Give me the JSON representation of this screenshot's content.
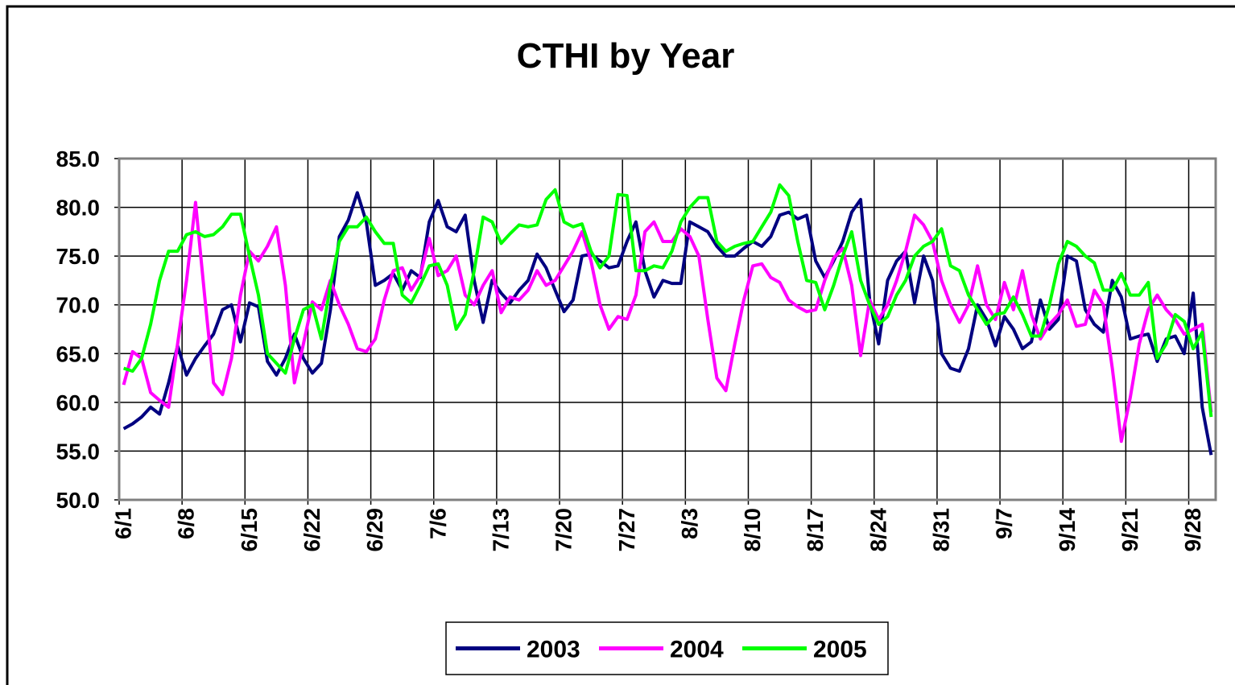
{
  "chart_data": {
    "type": "line",
    "title": "CTHI by Year",
    "categories": [
      "6/1",
      null,
      null,
      null,
      null,
      null,
      null,
      "6/8",
      null,
      null,
      null,
      null,
      null,
      null,
      "6/15",
      null,
      null,
      null,
      null,
      null,
      null,
      "6/22",
      null,
      null,
      null,
      null,
      null,
      null,
      "6/29",
      null,
      null,
      null,
      null,
      null,
      null,
      "7/6",
      null,
      null,
      null,
      null,
      null,
      null,
      "7/13",
      null,
      null,
      null,
      null,
      null,
      null,
      "7/20",
      null,
      null,
      null,
      null,
      null,
      null,
      "7/27",
      null,
      null,
      null,
      null,
      null,
      null,
      "8/3",
      null,
      null,
      null,
      null,
      null,
      null,
      "8/10",
      null,
      null,
      null,
      null,
      null,
      null,
      "8/17",
      null,
      null,
      null,
      null,
      null,
      null,
      "8/24",
      null,
      null,
      null,
      null,
      null,
      null,
      "8/31",
      null,
      null,
      null,
      null,
      null,
      null,
      "9/7",
      null,
      null,
      null,
      null,
      null,
      null,
      "9/14",
      null,
      null,
      null,
      null,
      null,
      null,
      "9/21",
      null,
      null,
      null,
      null,
      null,
      null,
      "9/28",
      null,
      null
    ],
    "series": [
      {
        "name": "2003",
        "color": "#000080",
        "values": [
          57.3,
          57.8,
          58.5,
          59.5,
          58.8,
          62,
          65.8,
          62.8,
          64.5,
          65.8,
          67,
          69.5,
          70,
          66.2,
          70.2,
          69.8,
          64.2,
          62.8,
          64.5,
          67,
          64.5,
          63,
          64,
          69.5,
          77,
          78.7,
          81.5,
          78.5,
          72,
          72.5,
          73.2,
          71.5,
          73.5,
          72.8,
          78.5,
          80.7,
          78,
          77.5,
          79.2,
          72.5,
          68.2,
          72.5,
          71.2,
          70.2,
          71.5,
          72.5,
          75.2,
          73.8,
          71.5,
          69.3,
          70.5,
          75,
          75.2,
          74.5,
          73.8,
          74,
          76.5,
          78.5,
          73.5,
          70.8,
          72.5,
          72.2,
          72.2,
          78.5,
          78,
          77.5,
          76,
          75,
          75,
          75.8,
          76.5,
          76,
          77,
          79.2,
          79.5,
          78.8,
          79.2,
          74.5,
          72.8,
          74.5,
          76.5,
          79.5,
          80.8,
          70.5,
          66,
          72.5,
          74.5,
          75.5,
          70.2,
          75,
          72.5,
          65,
          63.5,
          63.2,
          65.5,
          70,
          68.5,
          65.8,
          68.8,
          67.5,
          65.5,
          66.2,
          70.5,
          67.5,
          68.5,
          75,
          74.5,
          69.5,
          68,
          67.2,
          72.5,
          70.8,
          66.5,
          66.8,
          67,
          64.2,
          66.5,
          66.8,
          65,
          71.2,
          59.5,
          54.6
        ]
      },
      {
        "name": "2004",
        "color": "#ff00ff",
        "values": [
          61.8,
          65.2,
          64.5,
          61,
          60.2,
          59.5,
          66,
          72.5,
          80.5,
          71,
          62,
          60.8,
          64.5,
          71,
          75.5,
          74.5,
          76,
          78,
          72,
          62,
          66,
          70.3,
          69.5,
          72.5,
          70,
          68,
          65.5,
          65.2,
          66.5,
          70.5,
          73.5,
          73.8,
          71.5,
          73,
          76.8,
          73,
          73.5,
          75,
          71,
          70,
          72,
          73.5,
          69.2,
          70.8,
          70.5,
          71.5,
          73.5,
          72,
          72.5,
          74,
          75.5,
          77.5,
          74.5,
          70,
          67.5,
          68.8,
          68.5,
          71,
          77.5,
          78.5,
          76.5,
          76.5,
          77.8,
          77,
          75,
          68.5,
          62.5,
          61.2,
          66,
          70.5,
          74,
          74.2,
          72.8,
          72.3,
          70.5,
          69.8,
          69.3,
          69.5,
          72.5,
          74.8,
          75.8,
          72,
          64.8,
          70.5,
          68.5,
          70,
          72.5,
          75.5,
          79.2,
          78.2,
          76.5,
          72.5,
          70,
          68.2,
          70,
          74,
          70,
          68.5,
          72.3,
          69.5,
          73.5,
          69,
          66.5,
          68,
          69,
          70.5,
          67.8,
          68,
          71.5,
          70,
          63.5,
          56,
          60.5,
          66,
          69.5,
          71,
          69.5,
          68.5,
          67,
          67.5,
          68,
          59
        ]
      },
      {
        "name": "2005",
        "color": "#00ff00",
        "values": [
          63.5,
          63.2,
          64.5,
          68,
          72.5,
          75.5,
          75.5,
          77.2,
          77.5,
          77,
          77.2,
          78,
          79.3,
          79.3,
          75,
          71,
          65,
          64,
          63,
          66.5,
          69.5,
          70,
          66.5,
          72,
          76.5,
          78,
          78,
          79,
          77.5,
          76.3,
          76.3,
          71,
          70.2,
          72,
          74,
          74.2,
          72,
          67.5,
          69,
          73.5,
          79,
          78.5,
          76.3,
          77.3,
          78.2,
          78,
          78.2,
          80.8,
          81.8,
          78.5,
          78,
          78.3,
          75.5,
          73.8,
          75,
          81.3,
          81.2,
          73.5,
          73.5,
          74,
          73.8,
          75.5,
          78.5,
          80,
          81,
          81,
          76.5,
          75.5,
          76,
          76.3,
          76.5,
          78,
          79.5,
          82.3,
          81.2,
          76.5,
          72.5,
          72.3,
          69.5,
          72,
          75,
          77.5,
          72.5,
          70,
          68,
          68.8,
          71,
          72.5,
          75,
          76,
          76.5,
          77.8,
          74,
          73.5,
          71,
          69.5,
          68,
          69,
          69.2,
          70.8,
          69,
          66.8,
          66.8,
          70,
          74.2,
          76.5,
          76,
          75,
          74.3,
          71.5,
          71.5,
          73.2,
          71,
          71,
          72.3,
          64.5,
          66,
          69,
          68.3,
          65.5,
          67.2,
          58.5
        ]
      }
    ],
    "ylim": [
      50,
      85
    ],
    "yticks": [
      {
        "value": 50,
        "label": "50.0"
      },
      {
        "value": 55,
        "label": "55.0"
      },
      {
        "value": 60,
        "label": "60.0"
      },
      {
        "value": 65,
        "label": "65.0"
      },
      {
        "value": 70,
        "label": "70.0"
      },
      {
        "value": 75,
        "label": "75.0"
      },
      {
        "value": 80,
        "label": "80.0"
      },
      {
        "value": 85,
        "label": "85.0"
      }
    ],
    "grid": true,
    "legend": "bottom"
  }
}
